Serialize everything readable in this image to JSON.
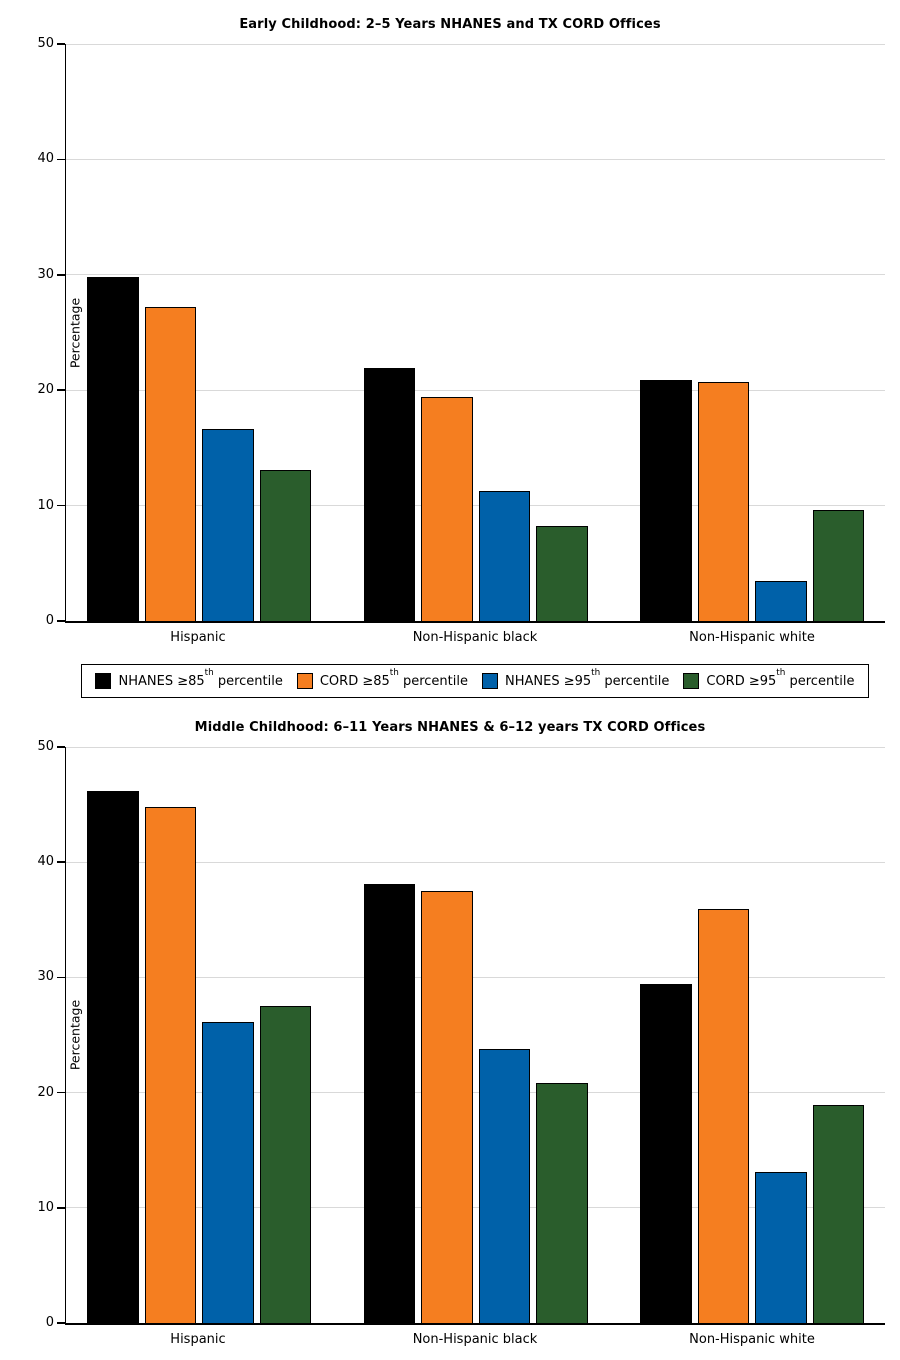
{
  "style": {
    "background": "#FFFFFF",
    "grid_color": "#D9D9D9",
    "axis_color": "#000000",
    "bar_edge_color": "#000000"
  },
  "legend": {
    "position": "between-charts",
    "items": [
      {
        "name": "nhanes-85",
        "pre": "NHANES ≥85",
        "sup": "th",
        "post": " percentile",
        "color": "#000000"
      },
      {
        "name": "cord-85",
        "pre": "CORD ≥85",
        "sup": "th",
        "post": " percentile",
        "color": "#F57E20"
      },
      {
        "name": "nhanes-95",
        "pre": "NHANES ≥95",
        "sup": "th",
        "post": " percentile",
        "color": "#0061A9"
      },
      {
        "name": "cord-95",
        "pre": "CORD ≥95",
        "sup": "th",
        "post": " percentile",
        "color": "#2A5D2C"
      }
    ]
  },
  "chart_data": [
    {
      "type": "bar",
      "title": "Early Childhood: 2–5 Years NHANES and TX CORD Offices",
      "xlabel": "",
      "ylabel": "Percentage",
      "ylim": [
        0,
        50
      ],
      "yticks": [
        0,
        10,
        20,
        30,
        40,
        50
      ],
      "grid": true,
      "categories": [
        "Hispanic",
        "Non-Hispanic black",
        "Non-Hispanic white"
      ],
      "series": [
        {
          "name": "NHANES ≥85th percentile",
          "color": "#000000",
          "values": [
            29.8,
            21.9,
            20.9
          ]
        },
        {
          "name": "CORD ≥85th percentile",
          "color": "#F57E20",
          "values": [
            27.2,
            19.4,
            20.7
          ]
        },
        {
          "name": "NHANES ≥95th percentile",
          "color": "#0061A9",
          "values": [
            16.6,
            11.3,
            3.5
          ]
        },
        {
          "name": "CORD ≥95th percentile",
          "color": "#2A5D2C",
          "values": [
            13.1,
            8.2,
            9.6
          ]
        }
      ]
    },
    {
      "type": "bar",
      "title": "Middle Childhood: 6–11 Years NHANES & 6–12 years TX CORD Offices",
      "xlabel": "",
      "ylabel": "Percentage",
      "ylim": [
        0,
        50
      ],
      "yticks": [
        0,
        10,
        20,
        30,
        40,
        50
      ],
      "grid": true,
      "categories": [
        "Hispanic",
        "Non-Hispanic black",
        "Non-Hispanic white"
      ],
      "series": [
        {
          "name": "NHANES ≥85th percentile",
          "color": "#000000",
          "values": [
            46.2,
            38.1,
            29.4
          ]
        },
        {
          "name": "CORD ≥85th percentile",
          "color": "#F57E20",
          "values": [
            44.8,
            37.5,
            35.9
          ]
        },
        {
          "name": "NHANES ≥95th percentile",
          "color": "#0061A9",
          "values": [
            26.1,
            23.8,
            13.1
          ]
        },
        {
          "name": "CORD ≥95th percentile",
          "color": "#2A5D2C",
          "values": [
            27.5,
            20.8,
            18.9
          ]
        }
      ]
    }
  ]
}
